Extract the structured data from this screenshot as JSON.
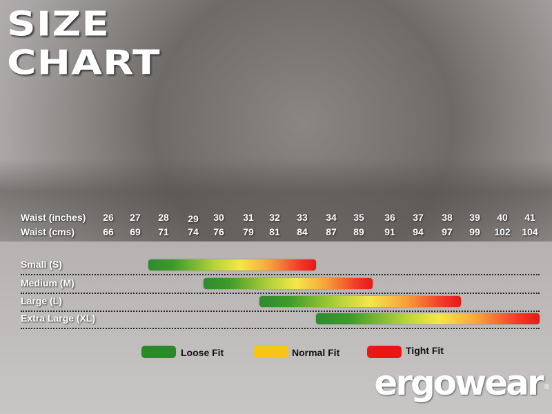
{
  "title": {
    "line1": "SIZE",
    "line2": "CHART"
  },
  "chart_data": {
    "type": "table",
    "rows": [
      {
        "label": "Waist (inches)",
        "values": [
          "26",
          "27",
          "28",
          "29",
          "30",
          "31",
          "32",
          "33",
          "34",
          "35",
          "36",
          "37",
          "38",
          "39",
          "40",
          "41"
        ]
      },
      {
        "label": "Waist (cms)",
        "values": [
          "66",
          "69",
          "71",
          "74",
          "76",
          "79",
          "81",
          "84",
          "87",
          "89",
          "91",
          "94",
          "97",
          "99",
          "102",
          "104"
        ]
      }
    ],
    "sizes": [
      {
        "label": "Small (S)",
        "range_inches": [
          28,
          33
        ]
      },
      {
        "label": "Medium (M)",
        "range_inches": [
          30,
          35
        ]
      },
      {
        "label": "Large (L)",
        "range_inches": [
          32,
          38
        ]
      },
      {
        "label": "Extra Large (XL)",
        "range_inches": [
          34,
          41
        ]
      }
    ],
    "legend": [
      {
        "label": "Loose Fit",
        "color": "#2a8a2a"
      },
      {
        "label": "Normal Fit",
        "color": "#f5c518"
      },
      {
        "label": "Tight Fit",
        "color": "#e81818"
      }
    ]
  },
  "logo": {
    "text": "ergowear",
    "mark": "®"
  }
}
